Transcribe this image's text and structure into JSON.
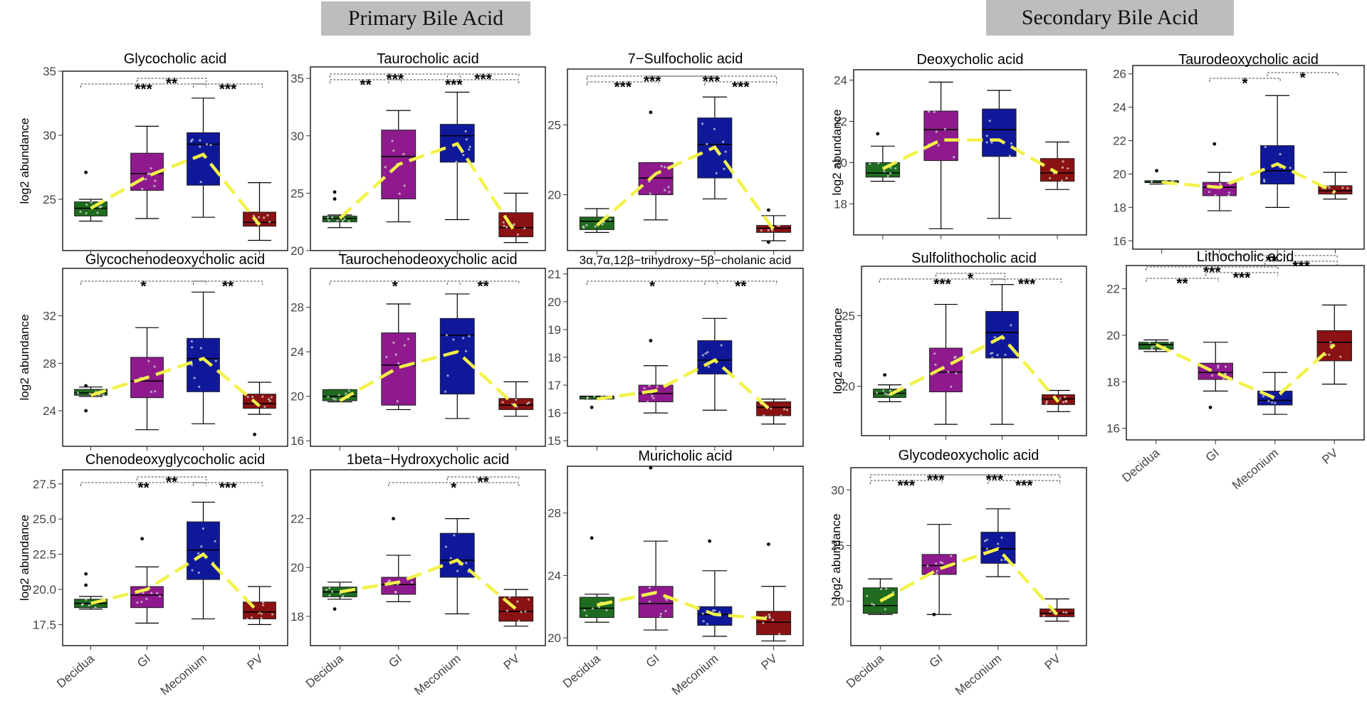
{
  "header": {
    "primary_title": "Primary Bile Acid",
    "secondary_title": "Secondary Bile Acid"
  },
  "colors": {
    "Decidua": "#1f6b1f",
    "GI": "#8e1a8e",
    "Meconium": "#10189a",
    "PV": "#8a1212",
    "trend_line": "#f2f24a"
  },
  "chart_data": [
    {
      "type": "box",
      "title": "Glycocholic acid",
      "ylabel": "log2 abundance",
      "ylim": [
        21,
        35
      ],
      "yticks": [
        25,
        30,
        35
      ],
      "categories": [
        "Decidua",
        "GI",
        "Meconium",
        "PV"
      ],
      "show_xticks": false,
      "boxes": [
        [
          23.3,
          23.7,
          24.3,
          24.8,
          25
        ],
        [
          23.5,
          25.7,
          27,
          28.6,
          30.7
        ],
        [
          23.6,
          26.1,
          29.3,
          30.2,
          32.9
        ],
        [
          21.8,
          22.9,
          23.2,
          24,
          26.3
        ]
      ],
      "outliers": [
        [
          27.1
        ],
        [],
        [],
        []
      ],
      "trend": [
        24.3,
        26.8,
        28.5,
        23
      ],
      "sig": [
        {
          "a": 0,
          "b": 2,
          "label": "***",
          "level": 1
        },
        {
          "a": 1,
          "b": 2,
          "label": "**",
          "level": 2
        },
        {
          "a": 2,
          "b": 3,
          "label": "***",
          "level": 1
        }
      ]
    },
    {
      "type": "box",
      "title": "Taurocholic acid",
      "ylabel": "",
      "ylim": [
        20,
        36
      ],
      "yticks": [
        20,
        25,
        30,
        35
      ],
      "categories": [
        "Decidua",
        "GI",
        "Meconium",
        "PV"
      ],
      "show_xticks": false,
      "boxes": [
        [
          22,
          22.5,
          22.8,
          23,
          23.1
        ],
        [
          22.5,
          24.5,
          28.2,
          30.5,
          32.2
        ],
        [
          22.7,
          27.7,
          30,
          31,
          33.8
        ],
        [
          20.7,
          21.2,
          22,
          23.3,
          25
        ]
      ],
      "outliers": [
        [
          25.1,
          24.5
        ],
        [],
        [],
        []
      ],
      "trend": [
        22.8,
        27.5,
        29.3,
        21.5
      ],
      "sig": [
        {
          "a": 0,
          "b": 1,
          "label": "**",
          "level": 1
        },
        {
          "a": 0,
          "b": 2,
          "label": "***",
          "level": 2
        },
        {
          "a": 1,
          "b": 3,
          "label": "***",
          "level": 1
        },
        {
          "a": 2,
          "b": 3,
          "label": "***",
          "level": 2
        }
      ]
    },
    {
      "type": "box",
      "title": "7−Sulfocholic acid",
      "ylabel": "",
      "ylim": [
        16,
        29
      ],
      "yticks": [
        20,
        25
      ],
      "categories": [
        "Decidua",
        "GI",
        "Meconium",
        "PV"
      ],
      "show_xticks": false,
      "boxes": [
        [
          17.3,
          17.5,
          18.1,
          18.4,
          19
        ],
        [
          18.2,
          20,
          21.2,
          22.3,
          22.3
        ],
        [
          19.7,
          21.2,
          23.6,
          25.5,
          27
        ],
        [
          16.7,
          17.3,
          17.6,
          17.8,
          18.5
        ]
      ],
      "outliers": [
        [],
        [
          25.9
        ],
        [],
        [
          18.9,
          16.6
        ]
      ],
      "trend": [
        17.8,
        21.5,
        23.4,
        17.5
      ],
      "sig": [
        {
          "a": 0,
          "b": 1,
          "label": "***",
          "level": 1
        },
        {
          "a": 0,
          "b": 2,
          "label": "***",
          "level": 2
        },
        {
          "a": 2,
          "b": 3,
          "label": "***",
          "level": 1
        },
        {
          "a": 1,
          "b": 3,
          "label": "***",
          "level": 2
        }
      ]
    },
    {
      "type": "box",
      "title": "Deoxycholic acid",
      "ylabel": "log2 abundance",
      "ylim": [
        16.5,
        24.5
      ],
      "yticks": [
        18,
        20,
        22,
        24
      ],
      "categories": [
        "Decidua",
        "GI",
        "Meconium",
        "PV"
      ],
      "show_xticks": false,
      "boxes": [
        [
          19.1,
          19.3,
          19.5,
          20,
          20.8
        ],
        [
          16.8,
          20.1,
          21.6,
          22.5,
          23.9
        ],
        [
          17.3,
          20.3,
          21.6,
          22.6,
          23.5
        ],
        [
          18.7,
          19.1,
          19.5,
          20.2,
          21
        ]
      ],
      "outliers": [
        [
          21.4
        ],
        [],
        [],
        []
      ],
      "trend": [
        19.7,
        21.1,
        21.1,
        19.5
      ],
      "sig": []
    },
    {
      "type": "box",
      "title": "Taurodeoxycholic acid",
      "ylabel": "",
      "ylim": [
        15.5,
        26.5
      ],
      "yticks": [
        16,
        18,
        20,
        22,
        24,
        26
      ],
      "categories": [
        "Decidua",
        "GI",
        "Meconium",
        "PV"
      ],
      "show_xticks": false,
      "boxes": [
        [
          19.4,
          19.5,
          19.5,
          19.6,
          19.6
        ],
        [
          17.8,
          18.7,
          19.2,
          19.5,
          20.1
        ],
        [
          18,
          19.4,
          20.2,
          21.7,
          24.7
        ],
        [
          18.5,
          18.8,
          19,
          19.3,
          20.1
        ]
      ],
      "outliers": [
        [
          20.2
        ],
        [
          21.8
        ],
        [],
        []
      ],
      "trend": [
        19.5,
        19.2,
        20.6,
        18.9
      ],
      "sig": [
        {
          "a": 1,
          "b": 2,
          "label": "*",
          "level": 1
        },
        {
          "a": 2,
          "b": 3,
          "label": "*",
          "level": 2
        }
      ]
    },
    {
      "type": "box",
      "title": "Glycochenodeoxycholic acid",
      "ylabel": "log2 abundance",
      "ylim": [
        21,
        36
      ],
      "yticks": [
        24,
        28,
        32
      ],
      "categories": [
        "Decidua",
        "GI",
        "Meconium",
        "PV"
      ],
      "show_xticks": false,
      "boxes": [
        [
          25.2,
          25.3,
          25.5,
          25.8,
          26
        ],
        [
          22.4,
          25.1,
          26.5,
          28.5,
          31
        ],
        [
          22.9,
          25.6,
          28.4,
          30.1,
          34
        ],
        [
          23.7,
          24.2,
          24.6,
          25.4,
          26.4
        ]
      ],
      "outliers": [
        [
          26.1,
          24
        ],
        [],
        [],
        [
          22
        ]
      ],
      "trend": [
        25.3,
        26.8,
        28.4,
        24.4
      ],
      "sig": [
        {
          "a": 0,
          "b": 2,
          "label": "*",
          "level": 1
        },
        {
          "a": 2,
          "b": 3,
          "label": "**",
          "level": 1
        }
      ]
    },
    {
      "type": "box",
      "title": "Taurochenodeoxycholic acid",
      "ylabel": "",
      "ylim": [
        15.5,
        31.5
      ],
      "yticks": [
        16,
        20,
        24,
        28
      ],
      "categories": [
        "Decidua",
        "GI",
        "Meconium",
        "PV"
      ],
      "show_xticks": false,
      "boxes": [
        [
          19.5,
          19.6,
          20,
          20.6,
          20.6
        ],
        [
          18.8,
          19.2,
          22.8,
          25.7,
          28.3
        ],
        [
          18,
          20.2,
          25.5,
          27,
          29.2
        ],
        [
          18.2,
          18.8,
          19.2,
          19.8,
          21.3
        ]
      ],
      "outliers": [
        [],
        [],
        [],
        []
      ],
      "trend": [
        19.6,
        22.6,
        24,
        19.1
      ],
      "sig": [
        {
          "a": 0,
          "b": 2,
          "label": "*",
          "level": 1
        },
        {
          "a": 2,
          "b": 3,
          "label": "**",
          "level": 1
        }
      ]
    },
    {
      "type": "box",
      "title": "3α,7α,12β−trihydroxy−5β−cholanic acid",
      "ylabel": "",
      "ylim": [
        14.8,
        21.2
      ],
      "yticks": [
        15,
        16,
        17,
        18,
        19,
        20,
        21
      ],
      "categories": [
        "Decidua",
        "GI",
        "Meconium",
        "PV"
      ],
      "show_xticks": false,
      "boxes": [
        [
          16.5,
          16.5,
          16.6,
          16.6,
          16.6
        ],
        [
          16,
          16.4,
          16.7,
          17,
          17.7
        ],
        [
          16.1,
          17.4,
          17.9,
          18.6,
          19.4
        ],
        [
          15.6,
          15.9,
          16.2,
          16.4,
          16.5
        ]
      ],
      "outliers": [
        [
          16.2
        ],
        [
          18.6
        ],
        [],
        []
      ],
      "trend": [
        16.5,
        16.8,
        17.9,
        16
      ],
      "sig": [
        {
          "a": 0,
          "b": 2,
          "label": "*",
          "level": 1
        },
        {
          "a": 2,
          "b": 3,
          "label": "**",
          "level": 1
        }
      ]
    },
    {
      "type": "box",
      "title": "Sulfolithocholic acid",
      "ylabel": "log2 abundance",
      "ylim": [
        16.5,
        28.5
      ],
      "yticks": [
        20,
        25
      ],
      "categories": [
        "Decidua",
        "GI",
        "Meconium",
        "PV"
      ],
      "show_xticks": false,
      "boxes": [
        [
          18.9,
          19.2,
          19.5,
          19.8,
          20.1
        ],
        [
          17.3,
          19.6,
          21,
          22.7,
          25.8
        ],
        [
          17.3,
          22,
          23.8,
          25.3,
          27.2
        ],
        [
          18.2,
          18.7,
          19.1,
          19.4,
          19.7
        ]
      ],
      "outliers": [
        [
          20.8
        ],
        [],
        [],
        []
      ],
      "trend": [
        19.4,
        21.4,
        23.5,
        18.9
      ],
      "sig": [
        {
          "a": 0,
          "b": 2,
          "label": "***",
          "level": 1
        },
        {
          "a": 1,
          "b": 2,
          "label": "*",
          "level": 2
        },
        {
          "a": 2,
          "b": 3,
          "label": "***",
          "level": 1
        }
      ]
    },
    {
      "type": "box",
      "title": "Lithocholic acid",
      "ylabel": "",
      "ylim": [
        15.5,
        23
      ],
      "yticks": [
        16,
        18,
        20,
        22
      ],
      "categories": [
        "Decidua",
        "GI",
        "Meconium",
        "PV"
      ],
      "show_xticks": true,
      "boxes": [
        [
          19.3,
          19.4,
          19.6,
          19.7,
          19.8
        ],
        [
          17.6,
          18.1,
          18.4,
          18.8,
          19.7
        ],
        [
          16.6,
          17,
          17.2,
          17.6,
          18.4
        ],
        [
          17.9,
          18.9,
          19.7,
          20.2,
          21.3
        ]
      ],
      "outliers": [
        [],
        [
          16.9
        ],
        [],
        []
      ],
      "trend": [
        19.6,
        18.4,
        17.3,
        19.6
      ],
      "sig": [
        {
          "a": 0,
          "b": 1,
          "label": "**",
          "level": 1
        },
        {
          "a": 1,
          "b": 2,
          "label": "***",
          "level": 2
        },
        {
          "a": 0,
          "b": 2,
          "label": "***",
          "level": 3
        },
        {
          "a": 2,
          "b": 3,
          "label": "***",
          "level": 4
        },
        {
          "a": 1,
          "b": 3,
          "label": "**",
          "level": 5
        }
      ]
    },
    {
      "type": "box",
      "title": "Chenodeoxyglycocholic acid",
      "ylabel": "log2 abundance",
      "ylim": [
        16,
        28.5
      ],
      "yticks": [
        17.5,
        20,
        22.5,
        25,
        27.5
      ],
      "yfmt": 1,
      "categories": [
        "Decidua",
        "GI",
        "Meconium",
        "PV"
      ],
      "show_xticks": true,
      "boxes": [
        [
          18.6,
          18.7,
          19,
          19.3,
          19.5
        ],
        [
          17.6,
          18.7,
          19.6,
          20.2,
          21.6
        ],
        [
          17.9,
          20.7,
          22.8,
          24.8,
          26.2
        ],
        [
          17.5,
          17.9,
          18.4,
          19.1,
          20.2
        ]
      ],
      "outliers": [
        [
          21.1,
          20.3
        ],
        [
          23.6
        ],
        [],
        []
      ],
      "trend": [
        19,
        20,
        22.5,
        18.3
      ],
      "sig": [
        {
          "a": 0,
          "b": 2,
          "label": "**",
          "level": 1
        },
        {
          "a": 1,
          "b": 2,
          "label": "**",
          "level": 2
        },
        {
          "a": 2,
          "b": 3,
          "label": "***",
          "level": 1
        }
      ]
    },
    {
      "type": "box",
      "title": "1beta−Hydroxycholic acid",
      "ylabel": "",
      "ylim": [
        16.8,
        24
      ],
      "yticks": [
        18,
        20,
        22
      ],
      "categories": [
        "Decidua",
        "GI",
        "Meconium",
        "PV"
      ],
      "show_xticks": true,
      "boxes": [
        [
          18.7,
          18.8,
          19,
          19.2,
          19.4
        ],
        [
          18.6,
          18.9,
          19.3,
          19.6,
          20.5
        ],
        [
          18.1,
          19.6,
          20.3,
          21.4,
          22
        ],
        [
          17.6,
          17.8,
          18.2,
          18.8,
          19.1
        ]
      ],
      "outliers": [
        [
          18.3
        ],
        [
          22
        ],
        [],
        []
      ],
      "trend": [
        19,
        19.4,
        20.3,
        18.3
      ],
      "sig": [
        {
          "a": 1,
          "b": 3,
          "label": "*",
          "level": 1
        },
        {
          "a": 2,
          "b": 3,
          "label": "**",
          "level": 2
        }
      ]
    },
    {
      "type": "box",
      "title": "Muricholic acid",
      "ylabel": "",
      "ylim": [
        19.5,
        31
      ],
      "yticks": [
        20,
        24,
        28
      ],
      "categories": [
        "Decidua",
        "GI",
        "Meconium",
        "PV"
      ],
      "show_xticks": true,
      "boxes": [
        [
          21,
          21.3,
          21.9,
          22.6,
          22.8
        ],
        [
          20.5,
          21.3,
          22.2,
          23.3,
          26.2
        ],
        [
          20.1,
          20.8,
          21.5,
          22,
          24.3
        ],
        [
          19.8,
          20.2,
          21,
          21.7,
          23.3
        ]
      ],
      "outliers": [
        [
          26.4
        ],
        [
          30.9
        ],
        [
          26.2
        ],
        [
          26
        ]
      ],
      "trend": [
        22.1,
        22.9,
        21.5,
        21.2
      ],
      "sig": []
    },
    {
      "type": "box",
      "title": "Glycodeoxycholic acid",
      "ylabel": "log2 abundance",
      "ylim": [
        16,
        32
      ],
      "yticks": [
        20,
        25,
        30
      ],
      "categories": [
        "Decidua",
        "GI",
        "Meconium",
        "PV"
      ],
      "show_xticks": true,
      "boxes": [
        [
          18.8,
          18.9,
          19.6,
          21.2,
          22
        ],
        [
          18.8,
          22.4,
          23.2,
          24.2,
          26.9
        ],
        [
          22.2,
          23.4,
          24.7,
          26.2,
          28.3
        ],
        [
          18.2,
          18.6,
          18.9,
          19.3,
          20.2
        ]
      ],
      "outliers": [
        [],
        [
          18.8
        ],
        [],
        []
      ],
      "trend": [
        20,
        22.9,
        24.7,
        18.8
      ],
      "sig": [
        {
          "a": 0,
          "b": 1,
          "label": "***",
          "level": 1
        },
        {
          "a": 0,
          "b": 2,
          "label": "***",
          "level": 2
        },
        {
          "a": 2,
          "b": 3,
          "label": "***",
          "level": 1
        },
        {
          "a": 1,
          "b": 3,
          "label": "***",
          "level": 2
        }
      ]
    }
  ]
}
